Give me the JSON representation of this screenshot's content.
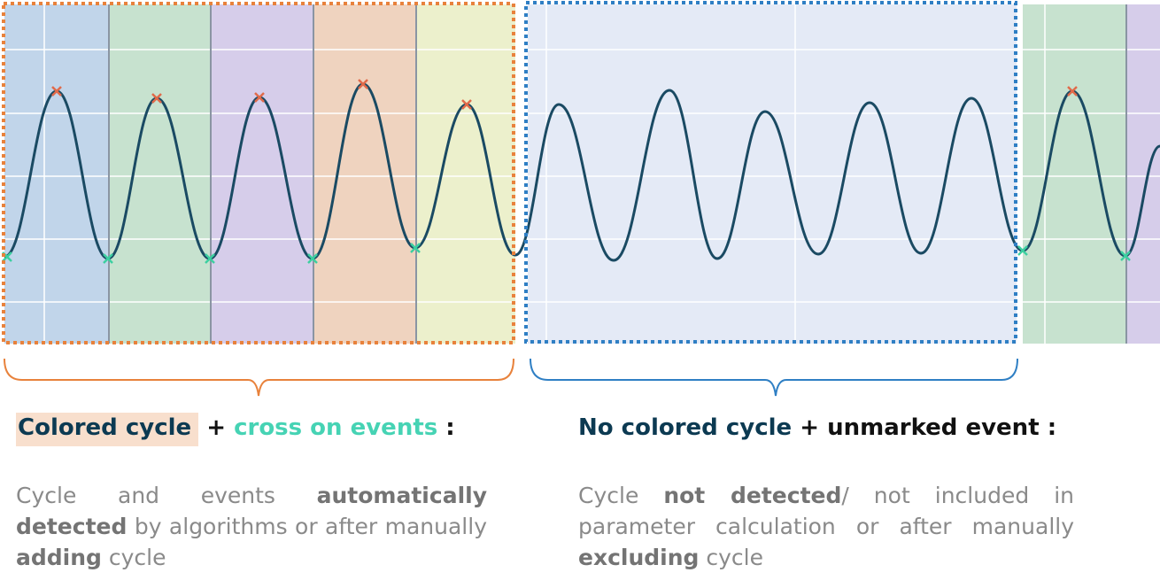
{
  "colors": {
    "orange_frame": "#e8823c",
    "blue_frame": "#2f7fc4",
    "curve": "#1a4a63",
    "peak_marker": "#e06a4a",
    "trough_marker": "#3ccfa0",
    "band_blue": "#c1d5ea",
    "band_green": "#c7e2cf",
    "band_purple": "#d6cdea",
    "band_orange": "#efd3bf",
    "band_yellow": "#ecf0cc",
    "excluded_area": "#e4eaf6"
  },
  "left_caption": {
    "heading": {
      "part1": "Colored cycle",
      "plus": "+",
      "part2": "cross on events",
      "colon": ":"
    },
    "description": [
      {
        "text": "Cycle and events ",
        "bold": false
      },
      {
        "text": "automatically detected",
        "bold": true
      },
      {
        "text": " by algorithms or after manually ",
        "bold": false
      },
      {
        "text": "adding",
        "bold": true
      },
      {
        "text": " cycle",
        "bold": false
      }
    ]
  },
  "right_caption": {
    "heading": {
      "part1": "No colored cycle",
      "plus": "+",
      "part2": "unmarked event",
      "colon": ":"
    },
    "description": [
      {
        "text": "Cycle ",
        "bold": false
      },
      {
        "text": "not detected",
        "bold": true
      },
      {
        "text": "/ not included in parameter calculation or after manually ",
        "bold": false
      },
      {
        "text": "excluding",
        "bold": true
      },
      {
        "text": " cycle",
        "bold": false
      }
    ]
  }
}
